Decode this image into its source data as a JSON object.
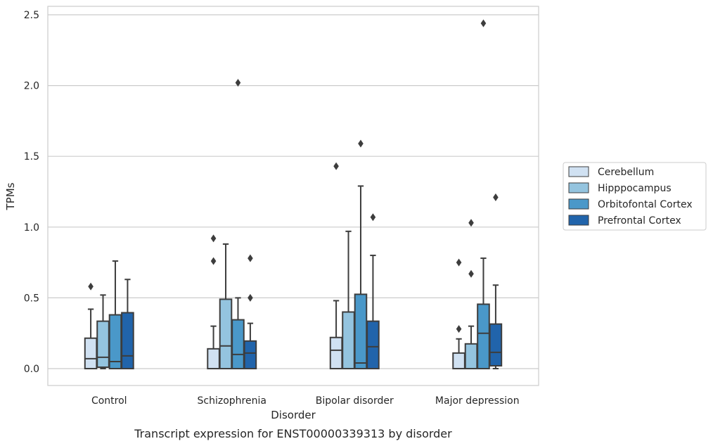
{
  "chart_data": {
    "type": "box",
    "title": "",
    "caption": "Transcript expression for ENST00000339313 by disorder",
    "xlabel": "Disorder",
    "ylabel": "TPMs",
    "ylim": [
      -0.12,
      2.57
    ],
    "yticks": [
      0.0,
      0.5,
      1.0,
      1.5,
      2.0,
      2.5
    ],
    "ytick_labels": [
      "0.0",
      "0.5",
      "1.0",
      "1.5",
      "2.0",
      "2.5"
    ],
    "grid": "horizontal",
    "legend_position": "right",
    "categories": [
      "Control",
      "Schizophrenia",
      "Bipolar disorder",
      "Major depression"
    ],
    "series": [
      {
        "name": "Cerebellum",
        "color": "#d0e1f2",
        "boxes": [
          {
            "whisker_low": 0.0,
            "q1": 0.0,
            "median": 0.07,
            "q3": 0.215,
            "whisker_high": 0.42,
            "outliers": [
              0.58
            ]
          },
          {
            "whisker_low": 0.0,
            "q1": 0.0,
            "median": 0.0,
            "q3": 0.14,
            "whisker_high": 0.3,
            "outliers": [
              0.76,
              0.92
            ]
          },
          {
            "whisker_low": 0.0,
            "q1": 0.0,
            "median": 0.13,
            "q3": 0.22,
            "whisker_high": 0.48,
            "outliers": [
              1.43
            ]
          },
          {
            "whisker_low": 0.0,
            "q1": 0.0,
            "median": 0.0,
            "q3": 0.11,
            "whisker_high": 0.21,
            "outliers": [
              0.28,
              0.75
            ]
          }
        ]
      },
      {
        "name": "Hipppocampus",
        "color": "#94c4df",
        "boxes": [
          {
            "whisker_low": 0.0,
            "q1": 0.01,
            "median": 0.08,
            "q3": 0.335,
            "whisker_high": 0.52,
            "outliers": []
          },
          {
            "whisker_low": 0.0,
            "q1": 0.0,
            "median": 0.16,
            "q3": 0.49,
            "whisker_high": 0.88,
            "outliers": []
          },
          {
            "whisker_low": 0.0,
            "q1": 0.0,
            "median": 0.0,
            "q3": 0.4,
            "whisker_high": 0.97,
            "outliers": []
          },
          {
            "whisker_low": 0.0,
            "q1": 0.0,
            "median": 0.0,
            "q3": 0.175,
            "whisker_high": 0.3,
            "outliers": [
              0.67,
              1.03
            ]
          }
        ]
      },
      {
        "name": "Orbitofontal Cortex",
        "color": "#4a98c9",
        "boxes": [
          {
            "whisker_low": 0.0,
            "q1": 0.0,
            "median": 0.05,
            "q3": 0.38,
            "whisker_high": 0.76,
            "outliers": []
          },
          {
            "whisker_low": 0.0,
            "q1": 0.0,
            "median": 0.1,
            "q3": 0.345,
            "whisker_high": 0.5,
            "outliers": [
              2.02
            ]
          },
          {
            "whisker_low": 0.0,
            "q1": 0.0,
            "median": 0.04,
            "q3": 0.525,
            "whisker_high": 1.29,
            "outliers": [
              1.59
            ]
          },
          {
            "whisker_low": 0.0,
            "q1": 0.0,
            "median": 0.25,
            "q3": 0.455,
            "whisker_high": 0.78,
            "outliers": [
              2.44
            ]
          }
        ]
      },
      {
        "name": "Prefrontal Cortex",
        "color": "#2164ab",
        "boxes": [
          {
            "whisker_low": 0.0,
            "q1": 0.0,
            "median": 0.09,
            "q3": 0.395,
            "whisker_high": 0.63,
            "outliers": []
          },
          {
            "whisker_low": 0.0,
            "q1": 0.0,
            "median": 0.11,
            "q3": 0.195,
            "whisker_high": 0.32,
            "outliers": [
              0.5,
              0.78
            ]
          },
          {
            "whisker_low": 0.0,
            "q1": 0.0,
            "median": 0.155,
            "q3": 0.335,
            "whisker_high": 0.8,
            "outliers": [
              1.07
            ]
          },
          {
            "whisker_low": 0.0,
            "q1": 0.02,
            "median": 0.115,
            "q3": 0.315,
            "whisker_high": 0.59,
            "outliers": [
              1.21
            ]
          }
        ]
      }
    ]
  }
}
